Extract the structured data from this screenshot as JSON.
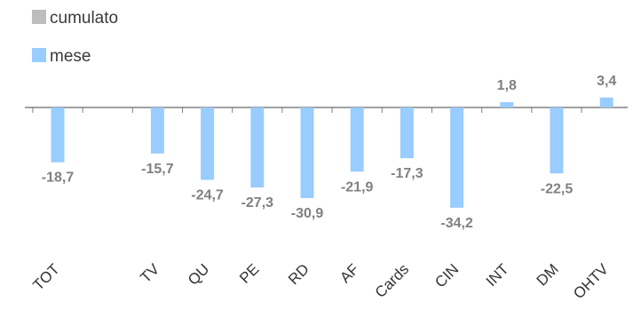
{
  "chart_data": {
    "type": "bar",
    "categories": [
      "TOT",
      "",
      "TV",
      "QU",
      "PE",
      "RD",
      "AF",
      "Cards",
      "CIN",
      "INT",
      "DM",
      "OHTV"
    ],
    "series": [
      {
        "name": "cumulato",
        "color": "#bdbdbd",
        "values": [
          null,
          null,
          null,
          null,
          null,
          null,
          null,
          null,
          null,
          null,
          null,
          null
        ]
      },
      {
        "name": "mese",
        "color": "#99ccff",
        "values": [
          -18.7,
          null,
          -15.7,
          -24.7,
          -27.3,
          -30.9,
          -21.9,
          -17.3,
          -34.2,
          1.8,
          -22.5,
          3.4
        ]
      }
    ],
    "data_labels": [
      "-18,7",
      "",
      "-15,7",
      "-24,7",
      "-27,3",
      "-30,9",
      "-21,9",
      "-17,3",
      "-34,2",
      "1,8",
      "-22,5",
      "3,4"
    ],
    "legend": {
      "placement": "top-left"
    },
    "title": "",
    "xlabel": "",
    "ylabel": "",
    "ylim": [
      -45,
      10
    ],
    "grid": false
  }
}
